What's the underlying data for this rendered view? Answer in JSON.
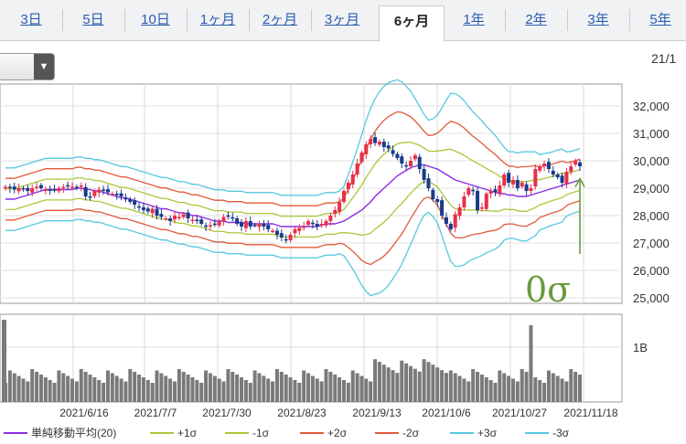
{
  "tabs": [
    {
      "label": "3日",
      "active": false
    },
    {
      "label": "5日",
      "active": false
    },
    {
      "label": "10日",
      "active": false
    },
    {
      "label": "1ヶ月",
      "active": false
    },
    {
      "label": "2ヶ月",
      "active": false
    },
    {
      "label": "3ヶ月",
      "active": false
    },
    {
      "label": "6ヶ月",
      "active": true
    },
    {
      "label": "1年",
      "active": false
    },
    {
      "label": "2年",
      "active": false
    },
    {
      "label": "3年",
      "active": false
    },
    {
      "label": "5年",
      "active": false
    }
  ],
  "top_right_date": "21/1",
  "annotation": "0σ",
  "colors": {
    "sma": "#8a2be2",
    "sigma1": "#a8c83a",
    "sigma2": "#e05a3a",
    "sigma3": "#58c8e0",
    "candle_up": "#e8304a",
    "candle_down": "#1a3a8c",
    "volume": "#7a7a7a",
    "annotation": "#6a9a3a"
  },
  "chart_data": {
    "type": "candlestick",
    "price_axis": {
      "ticks": [
        "25,000",
        "26,000",
        "27,000",
        "28,000",
        "29,000",
        "30,000",
        "31,000",
        "32,000"
      ],
      "ylim": [
        24800,
        32800
      ]
    },
    "volume_axis": {
      "ticks": [
        "1B"
      ],
      "ylim": [
        0,
        1.6
      ]
    },
    "x_tick_labels": [
      "2021/6/16",
      "2021/7/7",
      "2021/7/30",
      "2021/8/23",
      "2021/9/13",
      "2021/10/6",
      "2021/10/27",
      "2021/11/18"
    ],
    "legend": [
      {
        "label": "単純移動平均(20)",
        "color": "#8a2be2"
      },
      {
        "label": "+1σ",
        "color": "#a8c83a"
      },
      {
        "label": "-1σ",
        "color": "#a8c83a"
      },
      {
        "label": "+2σ",
        "color": "#e05a3a"
      },
      {
        "label": "-2σ",
        "color": "#e05a3a"
      },
      {
        "label": "+3σ",
        "color": "#58c8e0"
      },
      {
        "label": "-3σ",
        "color": "#58c8e0"
      }
    ],
    "close": [
      29050,
      29000,
      28950,
      29000,
      28950,
      28900,
      29000,
      29050,
      29000,
      28950,
      28900,
      28950,
      29000,
      29050,
      29100,
      29050,
      29000,
      29100,
      28700,
      28650,
      28900,
      28950,
      28900,
      28850,
      28800,
      28750,
      28700,
      28600,
      28500,
      28400,
      28300,
      28200,
      28150,
      28250,
      28000,
      27950,
      27900,
      27800,
      28000,
      27950,
      28050,
      27900,
      27850,
      27800,
      27700,
      27600,
      27650,
      27700,
      27800,
      27950,
      28000,
      27900,
      27700,
      27600,
      27800,
      27600,
      27650,
      27700,
      27600,
      27500,
      27450,
      27300,
      27200,
      27100,
      27300,
      27500,
      27550,
      27600,
      27800,
      27700,
      27600,
      27700,
      27800,
      28000,
      28200,
      28500,
      28900,
      29200,
      29500,
      29900,
      30300,
      30600,
      30800,
      30650,
      30700,
      30500,
      30450,
      30250,
      30100,
      29900,
      29800,
      30000,
      30200,
      29700,
      29300,
      29000,
      28600,
      28500,
      28000,
      27700,
      27500,
      28050,
      28300,
      28700,
      29000,
      28900,
      28200,
      28300,
      28800,
      28900,
      28850,
      29100,
      29500,
      29200,
      29300,
      29000,
      29200,
      28900,
      29000,
      29700,
      29800,
      29900,
      29700,
      29500,
      29400,
      29200,
      29600,
      29800,
      30000,
      29800
    ],
    "sma": [
      28600,
      28600,
      28600,
      28650,
      28700,
      28750,
      28800,
      28850,
      28900,
      28950,
      28950,
      28950,
      28950,
      28950,
      28950,
      28950,
      29000,
      29000,
      28950,
      28950,
      28900,
      28900,
      28850,
      28800,
      28750,
      28700,
      28650,
      28650,
      28600,
      28550,
      28500,
      28450,
      28400,
      28350,
      28300,
      28250,
      28250,
      28200,
      28150,
      28100,
      28100,
      28050,
      28000,
      28000,
      27950,
      27900,
      27850,
      27800,
      27800,
      27800,
      27750,
      27750,
      27750,
      27750,
      27700,
      27700,
      27700,
      27700,
      27700,
      27700,
      27700,
      27650,
      27600,
      27600,
      27600,
      27600,
      27600,
      27600,
      27600,
      27600,
      27600,
      27650,
      27700,
      27700,
      27700,
      27750,
      27800,
      27900,
      28000,
      28100,
      28200,
      28350,
      28500,
      28700,
      28850,
      29000,
      29150,
      29300,
      29450,
      29550,
      29650,
      29750,
      29800,
      29850,
      29850,
      29800,
      29750,
      29700,
      29600,
      29500,
      29400,
      29300,
      29250,
      29200,
      29150,
      29100,
      29050,
      29000,
      28950,
      28900,
      28850,
      28800,
      28800,
      28750,
      28750,
      28700,
      28700,
      28700,
      28750,
      28800,
      28850,
      28900,
      28950,
      29000,
      29050,
      29100,
      29150,
      29200,
      29250,
      29300
    ]
  }
}
